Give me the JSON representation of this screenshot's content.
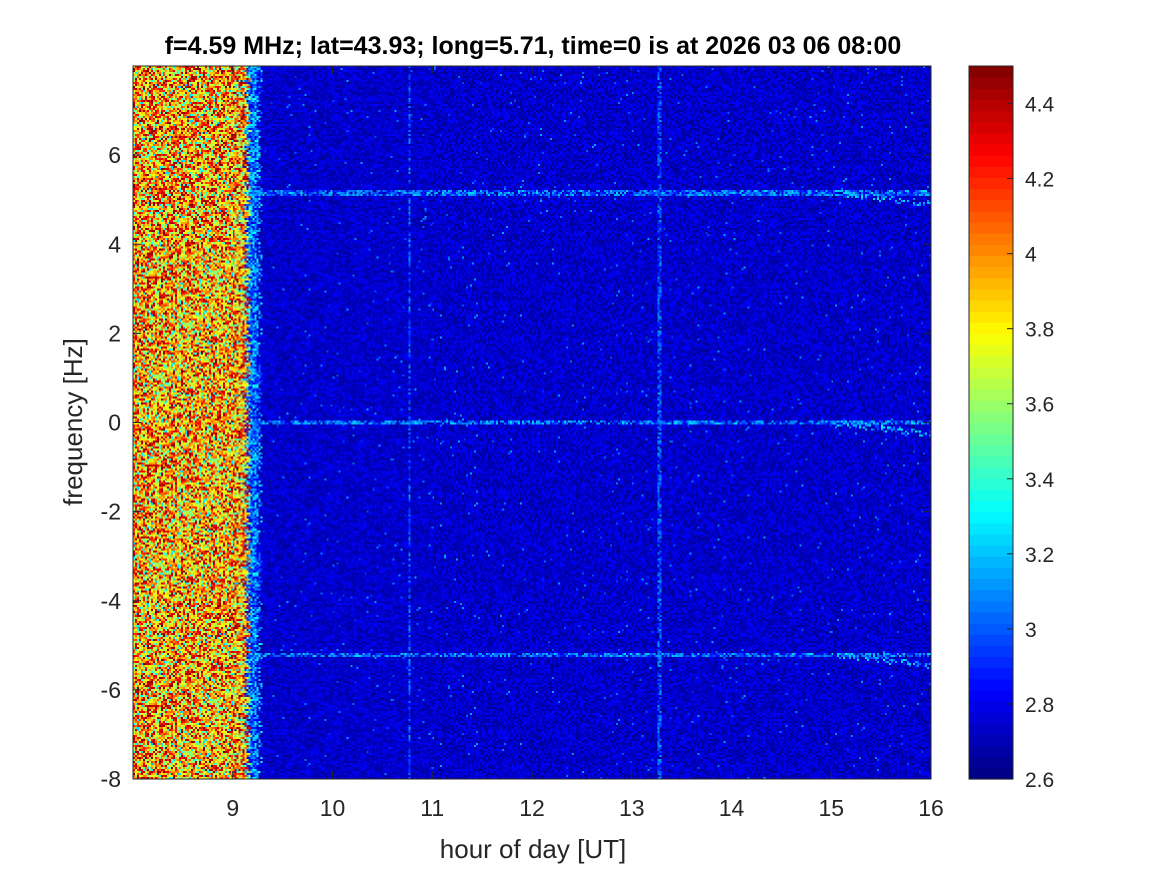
{
  "chart_data": {
    "type": "heatmap",
    "title": "f=4.59 MHz;  lat=43.93; long=5.71, time=0 is at 2026 03 06 08:00",
    "xlabel": "hour of day [UT]",
    "ylabel": "frequency [Hz]",
    "xlim": [
      8,
      16
    ],
    "ylim": [
      -8,
      8
    ],
    "x_ticks": [
      "9",
      "10",
      "11",
      "12",
      "13",
      "14",
      "15",
      "16"
    ],
    "y_ticks": [
      "-8",
      "-6",
      "-4",
      "-2",
      "0",
      "2",
      "4",
      "6"
    ],
    "colorbar": {
      "colormap": "jet",
      "range": [
        2.6,
        4.5
      ],
      "ticks": [
        "2.6",
        "2.8",
        "3",
        "3.2",
        "3.4",
        "3.6",
        "3.8",
        "4",
        "4.2",
        "4.4"
      ]
    },
    "features": {
      "high_noise_region_hours": [
        8,
        9.15
      ],
      "background_level": 2.75,
      "horizontal_lines_hz": [
        5.15,
        0,
        -5.2
      ],
      "vertical_lines_hours": [
        10.77,
        13.28
      ],
      "line_level": 3.1
    }
  }
}
